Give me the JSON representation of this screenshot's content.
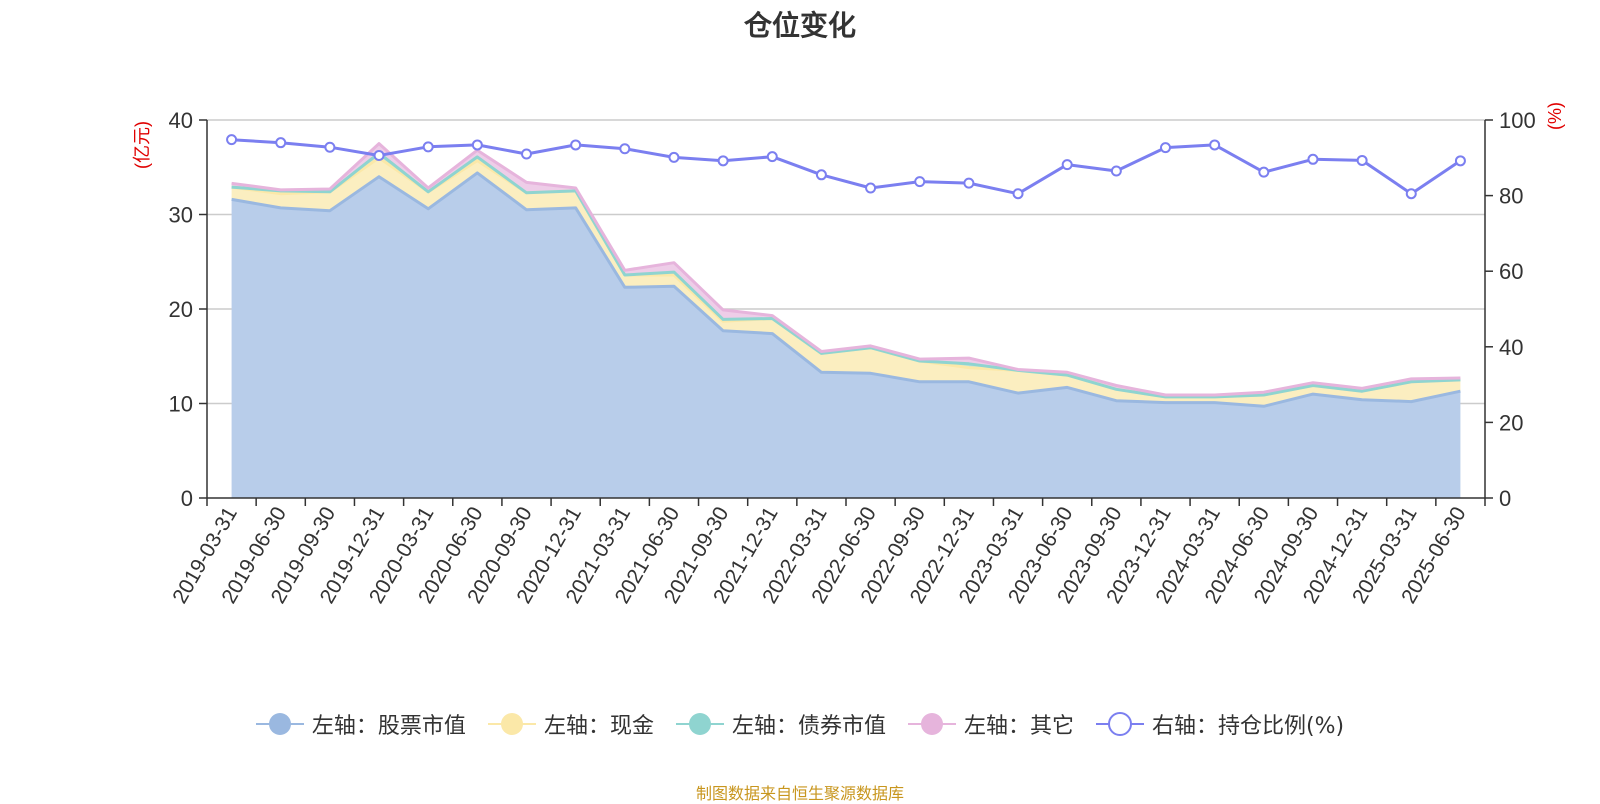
{
  "chart_data": {
    "type": "area",
    "title": "仓位变化",
    "x": [
      "2019-03-31",
      "2019-06-30",
      "2019-09-30",
      "2019-12-31",
      "2020-03-31",
      "2020-06-30",
      "2020-09-30",
      "2020-12-31",
      "2021-03-31",
      "2021-06-30",
      "2021-09-30",
      "2021-12-31",
      "2022-03-31",
      "2022-06-30",
      "2022-09-30",
      "2022-12-31",
      "2023-03-31",
      "2023-06-30",
      "2023-09-30",
      "2023-12-31",
      "2024-03-31",
      "2024-06-30",
      "2024-09-30",
      "2024-12-31",
      "2025-03-31",
      "2025-06-30"
    ],
    "y_left_label": "(亿元)",
    "y_right_label": "(%)",
    "ylim_left": [
      0,
      40
    ],
    "ylim_right": [
      0,
      100
    ],
    "yticks_left": [
      0,
      10,
      20,
      30,
      40
    ],
    "yticks_right": [
      0,
      20,
      40,
      60,
      80,
      100
    ],
    "grid": true,
    "legend_position": "bottom",
    "series": [
      {
        "name": "左轴：股票市值",
        "axis": "left",
        "kind": "area",
        "color": "#9ab8e0",
        "fill": "#b8cdea",
        "values": [
          31.6,
          30.7,
          30.4,
          34.0,
          30.6,
          34.4,
          30.5,
          30.7,
          22.3,
          22.4,
          17.7,
          17.4,
          13.3,
          13.2,
          12.3,
          12.3,
          11.1,
          11.7,
          10.3,
          10.1,
          10.1,
          9.7,
          11.0,
          10.4,
          10.2,
          11.3
        ]
      },
      {
        "name": "左轴：现金",
        "axis": "left",
        "kind": "area",
        "color": "#fbe8a8",
        "fill": "#fbeec0",
        "values": [
          1.3,
          1.5,
          2.0,
          2.0,
          1.8,
          1.3,
          1.8,
          1.8,
          1.3,
          1.2,
          1.0,
          1.6,
          2.0,
          2.7,
          2.2,
          1.5,
          2.4,
          1.3,
          1.2,
          0.6,
          0.6,
          1.2,
          0.9,
          0.9,
          2.1,
          1.2
        ]
      },
      {
        "name": "左轴：债券市值",
        "axis": "left",
        "kind": "area",
        "color": "#8fd4d0",
        "fill": "#b4e2de",
        "values": [
          0,
          0.3,
          0,
          0.5,
          0,
          0.4,
          0,
          0,
          0,
          0.3,
          0.2,
          0,
          0,
          0,
          0,
          0.4,
          0,
          0,
          0,
          0,
          0,
          0,
          0,
          0,
          0,
          0
        ]
      },
      {
        "name": "左轴：其它",
        "axis": "left",
        "kind": "area",
        "color": "#e6b4dc",
        "fill": "#eecde8",
        "values": [
          0.4,
          0.1,
          0.3,
          1.0,
          0.4,
          0.7,
          1.1,
          0.3,
          0.5,
          1.0,
          1.0,
          0.3,
          0.2,
          0.2,
          0.2,
          0.6,
          0.1,
          0.3,
          0.4,
          0.2,
          0.2,
          0.3,
          0.3,
          0.3,
          0.3,
          0.2
        ]
      },
      {
        "name": "右轴：持仓比例(%)",
        "axis": "right",
        "kind": "line",
        "color": "#7b7ff0",
        "values": [
          94.8,
          94.0,
          92.8,
          90.6,
          92.9,
          93.4,
          91.0,
          93.4,
          92.4,
          90.1,
          89.2,
          90.3,
          85.5,
          82.0,
          83.7,
          83.3,
          80.5,
          88.2,
          86.5,
          92.7,
          93.4,
          86.2,
          89.6,
          89.3,
          80.5,
          89.2
        ]
      }
    ]
  },
  "footer": {
    "source": "制图数据来自恒生聚源数据库"
  }
}
